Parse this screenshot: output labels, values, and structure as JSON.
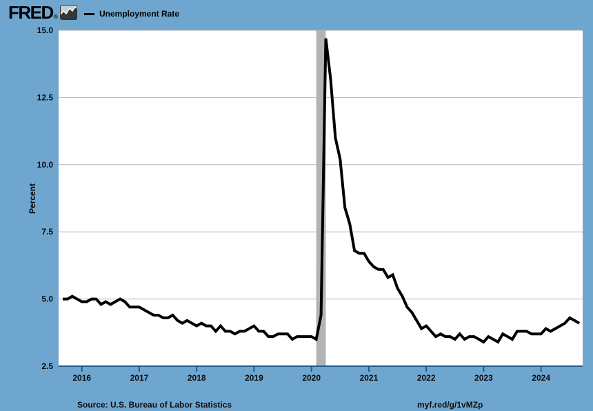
{
  "header": {
    "logo_text": "FRED",
    "logo_registered": "®",
    "legend": {
      "label": "Unemployment Rate",
      "swatch_color": "#000000"
    }
  },
  "footer": {
    "source": "Source: U.S. Bureau of Labor Statistics",
    "link": "myf.red/g/1vMZp"
  },
  "colors": {
    "page_background": "#6FA6CF",
    "plot_background": "#FFFFFF",
    "line": "#000000",
    "gridline": "#B5B5B5",
    "recession_band": "#B1B4B6",
    "axis": "#1A5A8C",
    "text": "#0D0D0D"
  },
  "chart_data": {
    "type": "line",
    "title": "Unemployment Rate",
    "xlabel": "",
    "ylabel": "Percent",
    "units": "Percent",
    "frequency": "monthly",
    "grid": true,
    "legend_position": "top-left",
    "ylim": [
      2.5,
      15.0
    ],
    "xlim": [
      2015.595,
      2024.725
    ],
    "y_ticks": [
      15.0,
      12.5,
      10.0,
      7.5,
      5.0,
      2.5
    ],
    "x_ticks": [
      2016,
      2017,
      2018,
      2019,
      2020,
      2021,
      2022,
      2023,
      2024
    ],
    "gridlines_at": [
      15.0,
      12.5,
      10.0,
      7.5,
      5.0
    ],
    "recession_shading": {
      "start": 2020.0833,
      "end": 2020.25
    },
    "series": [
      {
        "name": "Unemployment Rate",
        "start": 2015.6667,
        "start_label": "Sep 2015",
        "end_label": "Sep 2024",
        "values": [
          5.0,
          5.0,
          5.1,
          5.0,
          4.9,
          4.9,
          5.0,
          5.0,
          4.8,
          4.9,
          4.8,
          4.9,
          5.0,
          4.9,
          4.7,
          4.7,
          4.7,
          4.6,
          4.5,
          4.4,
          4.4,
          4.3,
          4.3,
          4.4,
          4.2,
          4.1,
          4.2,
          4.1,
          4.0,
          4.1,
          4.0,
          4.0,
          3.8,
          4.0,
          3.8,
          3.8,
          3.7,
          3.8,
          3.8,
          3.9,
          4.0,
          3.8,
          3.8,
          3.6,
          3.6,
          3.7,
          3.7,
          3.7,
          3.5,
          3.6,
          3.6,
          3.6,
          3.6,
          3.5,
          4.4,
          14.7,
          13.2,
          11.0,
          10.2,
          8.4,
          7.8,
          6.8,
          6.7,
          6.7,
          6.4,
          6.2,
          6.1,
          6.1,
          5.8,
          5.9,
          5.4,
          5.1,
          4.7,
          4.5,
          4.2,
          3.9,
          4.0,
          3.8,
          3.6,
          3.7,
          3.6,
          3.6,
          3.5,
          3.7,
          3.5,
          3.6,
          3.6,
          3.5,
          3.4,
          3.6,
          3.5,
          3.4,
          3.7,
          3.6,
          3.5,
          3.8,
          3.8,
          3.8,
          3.7,
          3.7,
          3.7,
          3.9,
          3.8,
          3.9,
          4.0,
          4.1,
          4.3,
          4.2,
          4.1
        ]
      }
    ]
  }
}
